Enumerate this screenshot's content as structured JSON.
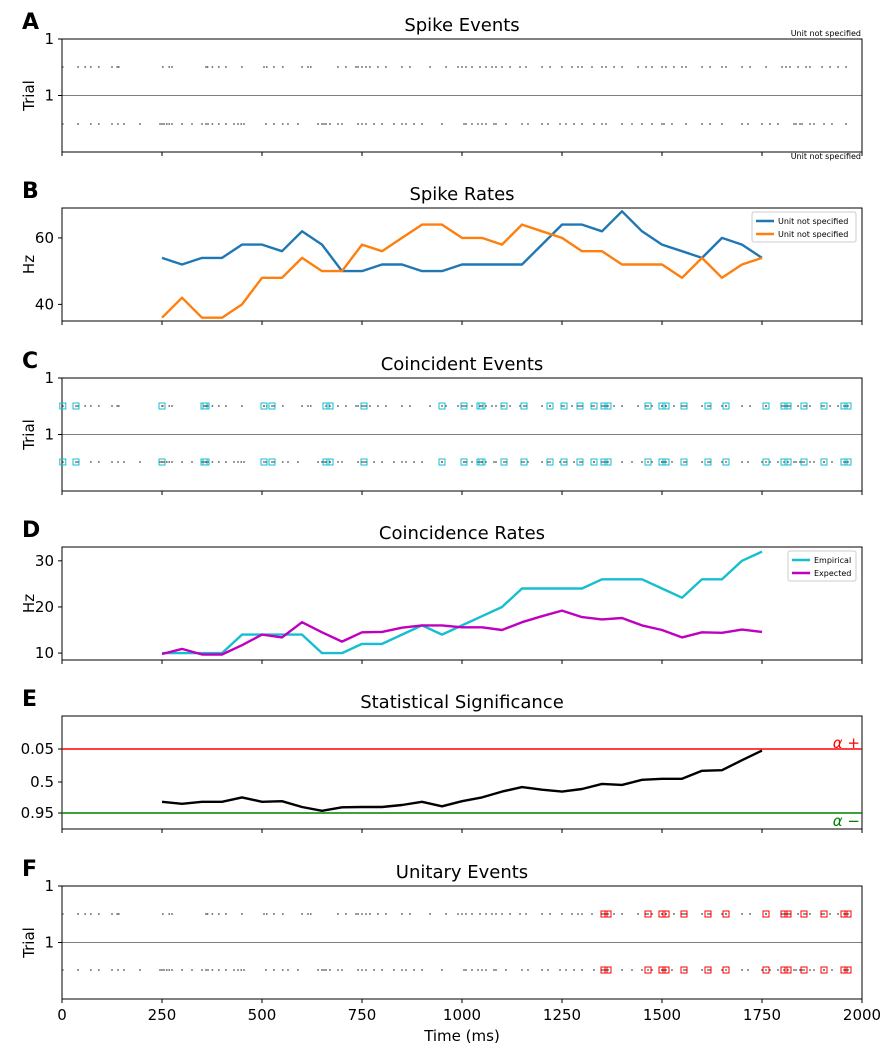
{
  "chart_data": [
    {
      "type": "scatter",
      "panel_letter": "A",
      "title": "Spike Events",
      "ylabel": "Trial",
      "xlim": [
        0,
        2000
      ],
      "yticklabels": [
        "1",
        "1"
      ],
      "annotations": [
        "Unit not specified",
        "Unit not specified"
      ],
      "series": [
        {
          "row": "upper",
          "color": "#555555",
          "x": [
            2,
            40,
            58,
            72,
            92,
            125,
            138,
            142,
            252,
            268,
            275,
            360,
            364,
            376,
            392,
            410,
            450,
            505,
            512,
            530,
            552,
            600,
            615,
            622,
            690,
            710,
            735,
            740,
            750,
            760,
            770,
            790,
            810,
            850,
            870,
            920,
            960,
            990,
            1000,
            1010,
            1025,
            1045,
            1060,
            1075,
            1085,
            1100,
            1120,
            1145,
            1160,
            1200,
            1220,
            1250,
            1275,
            1290,
            1300,
            1325,
            1350,
            1360,
            1380,
            1400,
            1440,
            1460,
            1475,
            1500,
            1510,
            1530,
            1550,
            1560,
            1600,
            1620,
            1650,
            1660,
            1700,
            1720,
            1760,
            1800,
            1810,
            1820,
            1840,
            1860,
            1870,
            1900,
            1920,
            1940,
            1960
          ]
        },
        {
          "row": "lower",
          "color": "#555555",
          "x": [
            2,
            40,
            72,
            92,
            125,
            140,
            155,
            195,
            245,
            250,
            255,
            262,
            268,
            275,
            300,
            325,
            350,
            360,
            365,
            376,
            392,
            410,
            430,
            440,
            448,
            455,
            510,
            530,
            552,
            565,
            590,
            640,
            650,
            655,
            660,
            670,
            690,
            700,
            740,
            750,
            760,
            780,
            800,
            830,
            850,
            860,
            880,
            900,
            950,
            1005,
            1010,
            1025,
            1040,
            1050,
            1060,
            1080,
            1085,
            1110,
            1150,
            1165,
            1200,
            1215,
            1245,
            1260,
            1280,
            1300,
            1330,
            1350,
            1360,
            1400,
            1425,
            1450,
            1475,
            1500,
            1505,
            1525,
            1560,
            1600,
            1620,
            1650,
            1700,
            1715,
            1750,
            1770,
            1790,
            1830,
            1835,
            1845,
            1850,
            1870,
            1880,
            1905,
            1925,
            1960
          ]
        }
      ]
    },
    {
      "type": "line",
      "panel_letter": "B",
      "title": "Spike Rates",
      "ylabel": "Hz",
      "xlim": [
        0,
        2000
      ],
      "ylim": [
        35,
        69
      ],
      "yticks": [
        40,
        60
      ],
      "legend_position": "top-right",
      "x": [
        250,
        300,
        350,
        400,
        450,
        500,
        550,
        600,
        650,
        700,
        750,
        800,
        850,
        900,
        950,
        1000,
        1050,
        1100,
        1150,
        1200,
        1250,
        1300,
        1350,
        1400,
        1450,
        1500,
        1550,
        1600,
        1650,
        1700,
        1750
      ],
      "series": [
        {
          "name": "Unit not specified",
          "color": "#1f77b4",
          "values": [
            54,
            52,
            54,
            54,
            58,
            58,
            56,
            62,
            58,
            50,
            50,
            52,
            52,
            50,
            50,
            52,
            52,
            52,
            52,
            58,
            64,
            64,
            62,
            68,
            62,
            58,
            56,
            54,
            60,
            58,
            54
          ]
        },
        {
          "name": "Unit not specified",
          "color": "#ff7f0e",
          "values": [
            36,
            42,
            36,
            36,
            40,
            48,
            48,
            54,
            50,
            50,
            58,
            56,
            60,
            64,
            64,
            60,
            60,
            58,
            64,
            62,
            60,
            56,
            56,
            52,
            52,
            52,
            48,
            54,
            48,
            52,
            54
          ]
        }
      ]
    },
    {
      "type": "scatter",
      "panel_letter": "C",
      "title": "Coincident Events",
      "ylabel": "Trial",
      "xlim": [
        0,
        2000
      ],
      "yticklabels": [
        "1",
        "1"
      ],
      "coincidences": [
        2,
        35,
        250,
        355,
        360,
        505,
        525,
        660,
        670,
        755,
        950,
        1005,
        1045,
        1050,
        1105,
        1155,
        1220,
        1255,
        1295,
        1330,
        1355,
        1365,
        1465,
        1500,
        1510,
        1555,
        1615,
        1660,
        1760,
        1805,
        1815,
        1855,
        1905,
        1955,
        1965
      ]
    },
    {
      "type": "line",
      "panel_letter": "D",
      "title": "Coincidence Rates",
      "ylabel": "Hz",
      "xlim": [
        0,
        2000
      ],
      "ylim": [
        8.5,
        33
      ],
      "yticks": [
        10,
        20,
        30
      ],
      "legend_position": "top-right",
      "x": [
        250,
        300,
        350,
        400,
        450,
        500,
        550,
        600,
        650,
        700,
        750,
        800,
        850,
        900,
        950,
        1000,
        1050,
        1100,
        1150,
        1200,
        1250,
        1300,
        1350,
        1400,
        1450,
        1500,
        1550,
        1600,
        1650,
        1700,
        1750
      ],
      "series": [
        {
          "name": "Empirical",
          "color": "#17becf",
          "values": [
            10,
            10,
            10,
            10,
            14,
            14,
            14,
            14,
            10,
            10,
            12,
            12,
            14,
            16,
            14,
            16,
            18,
            20,
            24,
            24,
            24,
            24,
            26,
            26,
            26,
            24,
            22,
            26,
            26,
            30,
            32
          ]
        },
        {
          "name": "Expected",
          "color": "#bf00bf",
          "values": [
            9.8,
            10.9,
            9.7,
            9.7,
            11.7,
            14,
            13.4,
            16.7,
            14.5,
            12.5,
            14.5,
            14.6,
            15.5,
            16,
            16,
            15.6,
            15.6,
            15,
            16.7,
            18,
            19.2,
            17.8,
            17.3,
            17.6,
            16,
            15,
            13.4,
            14.5,
            14.4,
            15.1,
            14.6
          ]
        }
      ]
    },
    {
      "type": "line",
      "panel_letter": "E",
      "title": "Statistical Significance",
      "xlim": [
        0,
        2000
      ],
      "yticklabels": [
        "0.05",
        "0.5",
        "0.95"
      ],
      "threshold_labels": [
        "α +",
        "α −"
      ],
      "threshold_colors": [
        "#ff0000",
        "#008000"
      ],
      "x": [
        250,
        300,
        350,
        400,
        450,
        500,
        550,
        600,
        650,
        700,
        750,
        800,
        850,
        900,
        950,
        1000,
        1050,
        1100,
        1150,
        1200,
        1250,
        1300,
        1350,
        1400,
        1450,
        1500,
        1550,
        1600,
        1650,
        1700,
        1750
      ],
      "series": [
        {
          "color": "#000000",
          "values": [
            0.62,
            0.68,
            0.62,
            0.62,
            0.48,
            0.62,
            0.6,
            0.78,
            0.9,
            0.79,
            0.78,
            0.78,
            0.72,
            0.62,
            0.76,
            0.6,
            0.48,
            0.3,
            0.16,
            0.24,
            0.3,
            0.22,
            0.06,
            0.09,
            -0.07,
            -0.1,
            -0.1,
            -0.35,
            -0.37,
            -0.68,
            -0.98
          ]
        }
      ]
    },
    {
      "type": "scatter",
      "panel_letter": "F",
      "title": "Unitary Events",
      "ylabel": "Trial",
      "xlabel": "Time (ms)",
      "xlim": [
        0,
        2000
      ],
      "xtick_values": [
        0,
        250,
        500,
        750,
        1000,
        1250,
        1500,
        1750,
        2000
      ],
      "xticklabels": [
        "0",
        "250",
        "500",
        "750",
        "1000",
        "1250",
        "1500",
        "1750",
        "2000"
      ],
      "yticklabels": [
        "1",
        "1"
      ],
      "unitary_events": [
        1355,
        1365,
        1465,
        1500,
        1510,
        1555,
        1615,
        1660,
        1760,
        1805,
        1815,
        1855,
        1905,
        1955,
        1965
      ]
    }
  ]
}
